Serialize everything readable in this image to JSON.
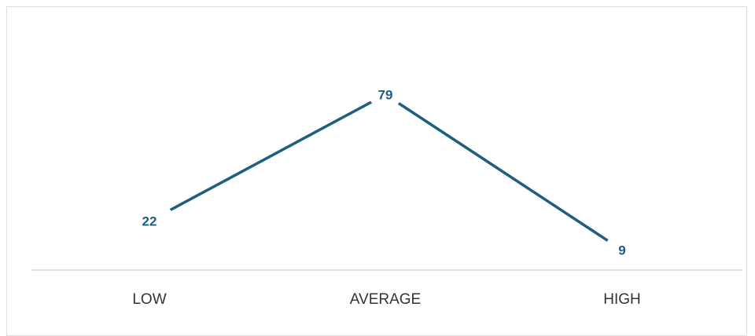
{
  "chart_data": {
    "type": "line",
    "categories": [
      "LOW",
      "AVERAGE",
      "HIGH"
    ],
    "series": [
      {
        "values": [
          22,
          79,
          9
        ]
      }
    ],
    "data_labels": [
      "22",
      "79",
      "9"
    ],
    "title": "",
    "xlabel": "",
    "ylabel": "",
    "ylim": [
      0,
      100
    ],
    "grid": false,
    "legend": "none",
    "colors": {
      "line": "#1e5f80",
      "axis": "#d9d9d9",
      "tick_text": "#333333"
    }
  }
}
